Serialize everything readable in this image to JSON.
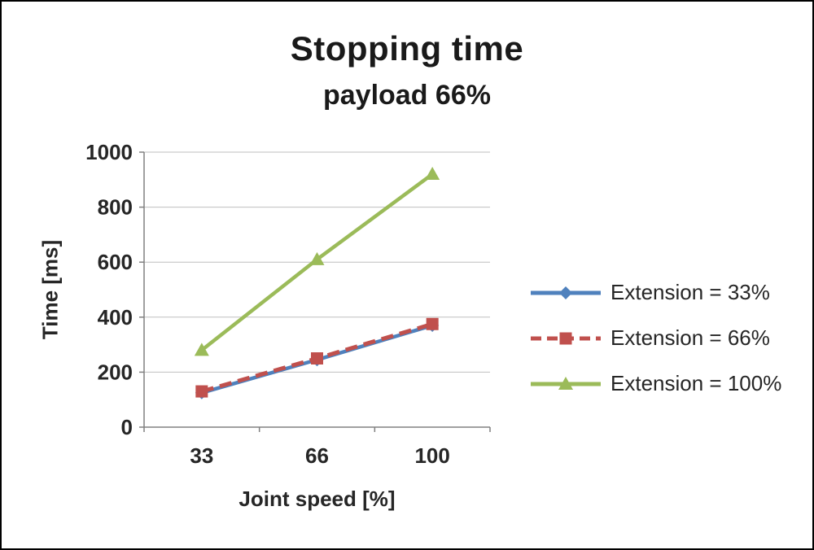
{
  "chart_data": {
    "type": "line",
    "title": "Stopping time",
    "subtitle": "payload 66%",
    "xlabel": "Joint speed [%]",
    "ylabel": "Time [ms]",
    "categories": [
      33,
      66,
      100
    ],
    "ylim": [
      0,
      1000
    ],
    "ytick_step": 200,
    "grid": true,
    "legend_position": "right",
    "series": [
      {
        "name": "Extension = 33%",
        "values": [
          125,
          245,
          370
        ],
        "color": "#4F81BD",
        "marker": "diamond",
        "dash": "solid"
      },
      {
        "name": "Extension = 66%",
        "values": [
          130,
          250,
          375
        ],
        "color": "#C0504D",
        "marker": "square",
        "dash": "dashed"
      },
      {
        "name": "Extension = 100%",
        "values": [
          280,
          610,
          920
        ],
        "color": "#9BBB59",
        "marker": "triangle",
        "dash": "solid"
      }
    ]
  },
  "colors": {
    "grid": "#BFBFBF",
    "axis": "#808080",
    "text": "#262626"
  }
}
